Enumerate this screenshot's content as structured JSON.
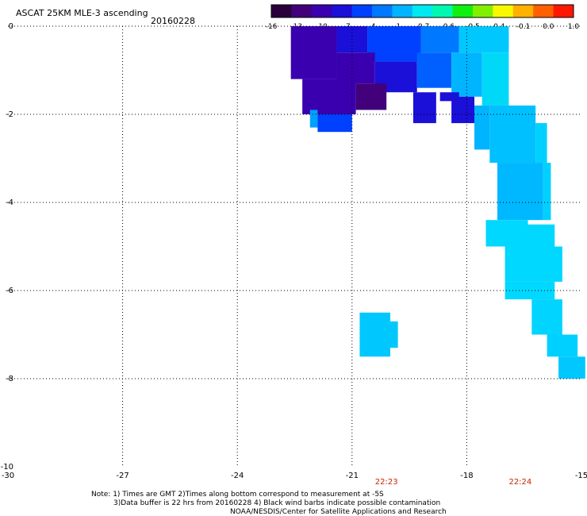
{
  "header": {
    "title": "ASCAT 25KM MLE-3 ascending",
    "date": "20160228"
  },
  "colorbar": {
    "tick_labels": [
      "-16",
      "-13",
      "-10",
      "-7",
      "-4",
      "-1",
      "-0.7",
      "-0.6",
      "-0.5",
      "-0.4",
      "-0.1",
      "0.0",
      "1.0"
    ],
    "colors": [
      "#2a003a",
      "#42007a",
      "#3a00b0",
      "#1a10d8",
      "#0040ff",
      "#0078ff",
      "#00b4ff",
      "#00e8f0",
      "#00f8b0",
      "#10f010",
      "#80f000",
      "#f8f800",
      "#ffb000",
      "#ff6000",
      "#ff1800"
    ]
  },
  "axes": {
    "x_ticks": [
      -30,
      -27,
      -24,
      -21,
      -18,
      -15
    ],
    "y_ticks": [
      0,
      -2,
      -4,
      -6,
      -8,
      -10
    ],
    "x_tick_labels": [
      "-30",
      "-27",
      "-24",
      "-21",
      "-18",
      "-15"
    ],
    "y_tick_labels": [
      "0",
      "-2",
      "-4",
      "-6",
      "-8",
      "-10"
    ],
    "x_range": [
      -30,
      -15
    ],
    "y_range": [
      -10,
      0
    ]
  },
  "time_labels": [
    {
      "text": "22:23",
      "lon": -20.1
    },
    {
      "text": "22:24",
      "lon": -16.6
    }
  ],
  "notes": {
    "line1": "Note: 1) Times are GMT 2)Times along bottom correspond to measurement at -5S",
    "line2": "3)Data buffer is 22 hrs from 20160228 4) Black wind barbs indicate possible contamination",
    "line3": "NOAA/NESDIS/Center for Satellite Applications and Research"
  },
  "chart_data": {
    "type": "heatmap",
    "title": "ASCAT 25KM MLE-3 ascending",
    "xlim": [
      -30,
      -15
    ],
    "ylim": [
      -10,
      0
    ],
    "cells": [
      {
        "lon0": -22.6,
        "lon1": -21.4,
        "lat0": -1.2,
        "lat1": 0.0,
        "color": "#3a00b0"
      },
      {
        "lon0": -21.4,
        "lon1": -20.6,
        "lat0": -0.6,
        "lat1": 0.0,
        "color": "#1a10d8"
      },
      {
        "lon0": -20.6,
        "lon1": -19.2,
        "lat0": -0.8,
        "lat1": 0.0,
        "color": "#0040ff"
      },
      {
        "lon0": -19.2,
        "lon1": -18.2,
        "lat0": -0.6,
        "lat1": 0.0,
        "color": "#0078ff"
      },
      {
        "lon0": -18.2,
        "lon1": -16.9,
        "lat0": -0.6,
        "lat1": 0.0,
        "color": "#00c8ff"
      },
      {
        "lon0": -21.4,
        "lon1": -20.4,
        "lat0": -1.3,
        "lat1": -0.6,
        "color": "#3a00b0"
      },
      {
        "lon0": -20.4,
        "lon1": -19.3,
        "lat0": -1.5,
        "lat1": -0.8,
        "color": "#1a10d8"
      },
      {
        "lon0": -19.3,
        "lon1": -18.4,
        "lat0": -1.4,
        "lat1": -0.6,
        "color": "#0060ff"
      },
      {
        "lon0": -18.4,
        "lon1": -17.6,
        "lat0": -1.6,
        "lat1": -0.6,
        "color": "#00b4ff"
      },
      {
        "lon0": -17.6,
        "lon1": -16.9,
        "lat0": -1.8,
        "lat1": -0.6,
        "color": "#00d8f8"
      },
      {
        "lon0": -22.3,
        "lon1": -20.9,
        "lat0": -2.0,
        "lat1": -1.2,
        "color": "#3a00b0"
      },
      {
        "lon0": -20.9,
        "lon1": -20.1,
        "lat0": -1.9,
        "lat1": -1.3,
        "color": "#42007a"
      },
      {
        "lon0": -19.4,
        "lon1": -18.8,
        "lat0": -2.2,
        "lat1": -1.5,
        "color": "#1a10d8"
      },
      {
        "lon0": -18.7,
        "lon1": -18.2,
        "lat0": -1.7,
        "lat1": -1.5,
        "color": "#1a10d8"
      },
      {
        "lon0": -18.4,
        "lon1": -17.8,
        "lat0": -2.2,
        "lat1": -1.6,
        "color": "#1a10d8"
      },
      {
        "lon0": -22.1,
        "lon1": -21.9,
        "lat0": -2.3,
        "lat1": -1.9,
        "color": "#00a0ff"
      },
      {
        "lon0": -21.9,
        "lon1": -21.0,
        "lat0": -2.4,
        "lat1": -2.0,
        "color": "#0040ff"
      },
      {
        "lon0": -17.8,
        "lon1": -17.4,
        "lat0": -2.8,
        "lat1": -1.8,
        "color": "#00b4ff"
      },
      {
        "lon0": -17.4,
        "lon1": -16.2,
        "lat0": -3.1,
        "lat1": -1.8,
        "color": "#00c0ff"
      },
      {
        "lon0": -16.2,
        "lon1": -15.9,
        "lat0": -3.1,
        "lat1": -2.2,
        "color": "#00d0ff"
      },
      {
        "lon0": -17.2,
        "lon1": -16.0,
        "lat0": -4.4,
        "lat1": -3.1,
        "color": "#00b8ff"
      },
      {
        "lon0": -16.0,
        "lon1": -15.8,
        "lat0": -4.4,
        "lat1": -3.1,
        "color": "#00d0ff"
      },
      {
        "lon0": -17.5,
        "lon1": -16.4,
        "lat0": -5.0,
        "lat1": -4.4,
        "color": "#00d8ff"
      },
      {
        "lon0": -16.4,
        "lon1": -15.7,
        "lat0": -5.0,
        "lat1": -4.5,
        "color": "#00d8ff"
      },
      {
        "lon0": -17.0,
        "lon1": -15.5,
        "lat0": -5.8,
        "lat1": -5.0,
        "color": "#00d8ff"
      },
      {
        "lon0": -17.0,
        "lon1": -15.7,
        "lat0": -6.2,
        "lat1": -5.8,
        "color": "#00d8ff"
      },
      {
        "lon0": -16.3,
        "lon1": -15.5,
        "lat0": -7.0,
        "lat1": -6.2,
        "color": "#00d4ff"
      },
      {
        "lon0": -15.9,
        "lon1": -15.1,
        "lat0": -7.5,
        "lat1": -7.0,
        "color": "#00d0ff"
      },
      {
        "lon0": -15.6,
        "lon1": -14.9,
        "lat0": -8.0,
        "lat1": -7.5,
        "color": "#00c8ff"
      },
      {
        "lon0": -20.8,
        "lon1": -20.0,
        "lat0": -7.5,
        "lat1": -6.5,
        "color": "#00c8ff"
      },
      {
        "lon0": -20.0,
        "lon1": -19.8,
        "lat0": -7.3,
        "lat1": -6.7,
        "color": "#00c8ff"
      }
    ]
  }
}
